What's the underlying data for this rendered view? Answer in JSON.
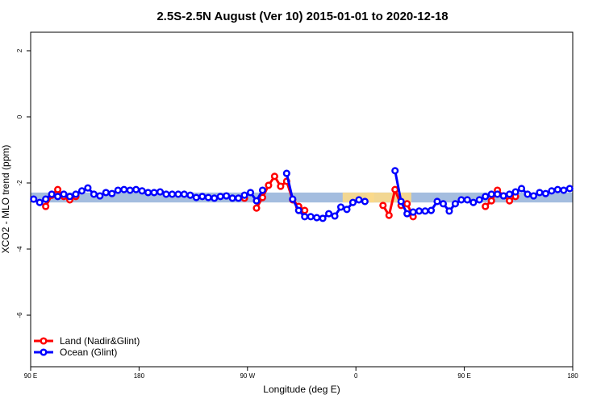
{
  "chart_data": {
    "type": "line",
    "title": "2.5S-2.5N August (Ver 10)   2015-01-01 to 2020-12-18",
    "x_label": "Longitude (deg E)",
    "y_label": "XCO2 - MLO trend (ppm)",
    "xlim": [
      90,
      540
    ],
    "ylim": [
      -7.56,
      2.56
    ],
    "xticks": [
      {
        "value": 90,
        "label": "90 E"
      },
      180,
      {
        "value": 270,
        "label": "90 W"
      },
      {
        "value": 360,
        "label": "0"
      },
      {
        "value": 450,
        "label": "90 E"
      },
      {
        "value": 540,
        "label": "180"
      }
    ],
    "yticks": [
      2,
      0,
      -2,
      -4,
      -6
    ],
    "legend": "bottom-left",
    "reference_band": {
      "ylim": [
        -2.59,
        -2.29
      ],
      "color": "#a4bddf"
    },
    "highlight_bands": {
      "color": "#fbd98a",
      "ranges": [
        [
          349,
          375
        ],
        [
          369,
          406
        ]
      ]
    },
    "x": [
      92.5,
      97.5,
      102.5,
      107.5,
      112.5,
      117.5,
      122.5,
      127.5,
      132.5,
      137.5,
      142.5,
      147.5,
      152.5,
      157.5,
      162.5,
      167.5,
      172.5,
      177.5,
      182.5,
      187.5,
      192.5,
      197.5,
      202.5,
      207.5,
      212.5,
      217.5,
      222.5,
      227.5,
      232.5,
      237.5,
      242.5,
      247.5,
      252.5,
      257.5,
      262.5,
      267.5,
      272.5,
      277.5,
      282.5,
      287.5,
      292.5,
      297.5,
      302.5,
      307.5,
      312.5,
      317.5,
      322.5,
      327.5,
      332.5,
      337.5,
      342.5,
      347.5,
      352.5,
      357.5,
      362.5,
      367.5,
      372.5,
      377.5,
      382.5,
      387.5,
      392.5,
      397.5,
      402.5,
      407.5,
      412.5,
      417.5,
      422.5,
      427.5,
      432.5,
      437.5,
      442.5,
      447.5,
      452.5,
      457.5,
      462.5,
      467.5,
      472.5,
      477.5,
      482.5,
      487.5,
      492.5,
      497.5,
      502.5,
      507.5,
      512.5,
      517.5,
      522.5,
      527.5,
      532.5,
      537.5
    ],
    "series": [
      {
        "name": "Land (Nadir&Glint)",
        "color": "#ff0000",
        "values": [
          null,
          null,
          -2.71,
          -2.37,
          -2.2,
          -2.41,
          -2.51,
          -2.41,
          null,
          null,
          null,
          null,
          null,
          null,
          null,
          null,
          null,
          null,
          null,
          null,
          null,
          null,
          null,
          null,
          null,
          null,
          null,
          null,
          null,
          null,
          null,
          null,
          null,
          null,
          null,
          -2.46,
          null,
          -2.76,
          -2.44,
          -2.07,
          -1.8,
          -2.1,
          -1.95,
          -2.51,
          -2.71,
          -2.83,
          null,
          null,
          null,
          null,
          null,
          null,
          null,
          null,
          null,
          null,
          null,
          null,
          -2.68,
          -2.98,
          -2.2,
          -2.68,
          -2.63,
          -3.02,
          null,
          null,
          null,
          null,
          null,
          null,
          null,
          null,
          null,
          null,
          null,
          -2.71,
          -2.54,
          -2.22,
          -2.39,
          -2.54,
          -2.41,
          null,
          null,
          null,
          null,
          null,
          null,
          null,
          null,
          null
        ]
      },
      {
        "name": "Ocean (Glint)",
        "color": "#0000ff",
        "values": [
          -2.49,
          -2.59,
          -2.49,
          -2.34,
          -2.41,
          -2.34,
          -2.41,
          -2.34,
          -2.24,
          -2.15,
          -2.34,
          -2.39,
          -2.29,
          -2.32,
          -2.22,
          -2.2,
          -2.22,
          -2.2,
          -2.24,
          -2.29,
          -2.29,
          -2.27,
          -2.34,
          -2.34,
          -2.34,
          -2.34,
          -2.37,
          -2.44,
          -2.41,
          -2.44,
          -2.46,
          -2.41,
          -2.39,
          -2.46,
          -2.46,
          -2.37,
          -2.29,
          -2.54,
          -2.22,
          null,
          null,
          null,
          -1.71,
          -2.49,
          -2.83,
          -3.02,
          -3.02,
          -3.05,
          -3.07,
          -2.93,
          -3.0,
          -2.73,
          -2.8,
          -2.59,
          -2.51,
          -2.56,
          null,
          null,
          null,
          null,
          -1.63,
          -2.56,
          -2.93,
          -2.88,
          -2.85,
          -2.85,
          -2.83,
          -2.56,
          -2.63,
          -2.85,
          -2.63,
          -2.51,
          -2.51,
          -2.59,
          -2.51,
          -2.41,
          -2.34,
          -2.34,
          -2.39,
          -2.34,
          -2.27,
          -2.17,
          -2.34,
          -2.39,
          -2.29,
          -2.32,
          -2.24,
          -2.2,
          -2.22,
          -2.17
        ]
      }
    ]
  }
}
